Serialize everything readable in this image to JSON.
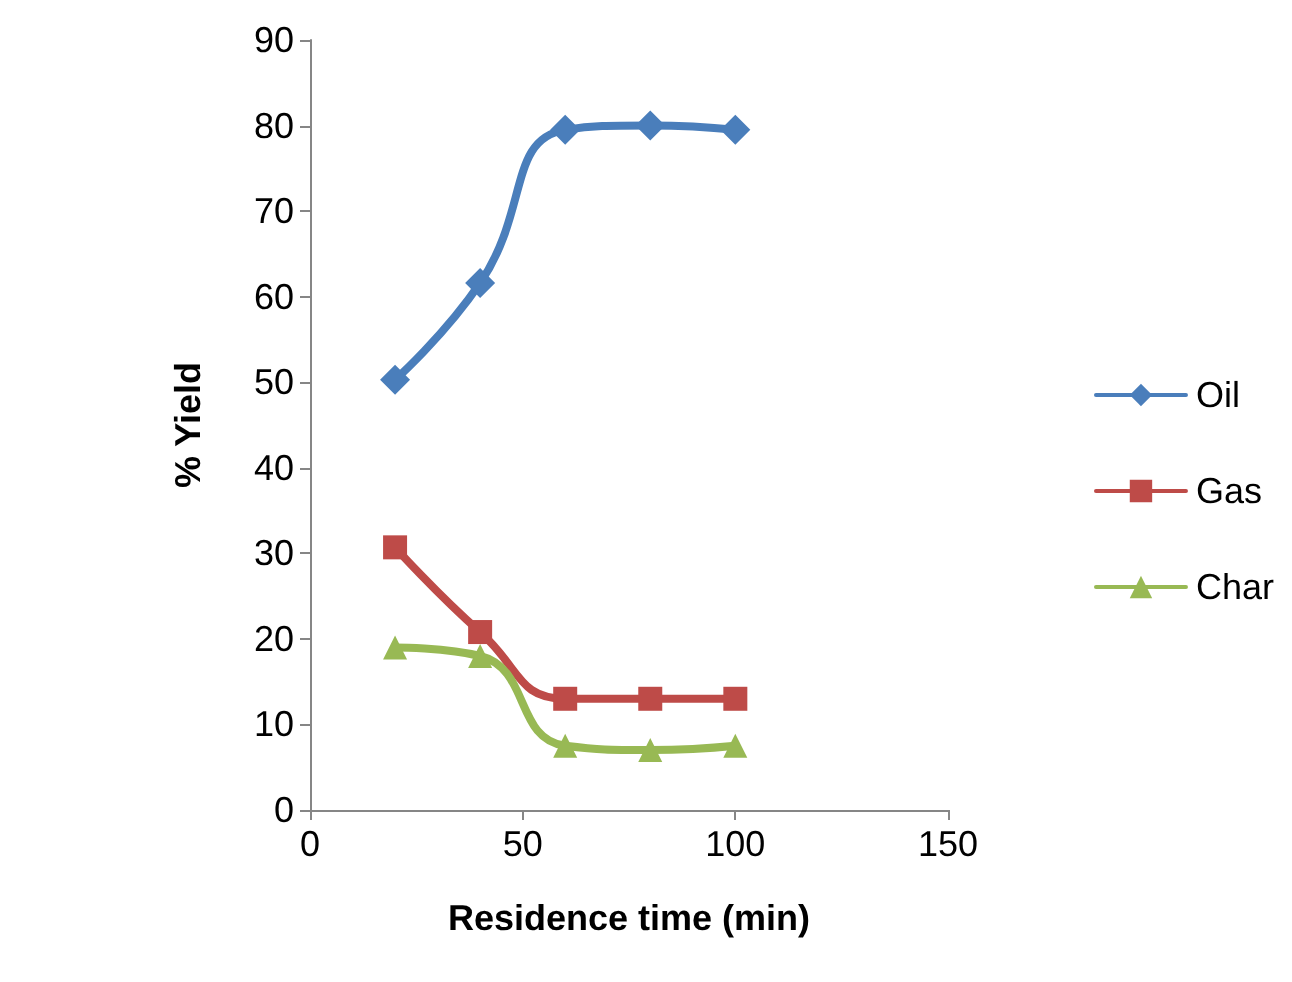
{
  "chart_data": {
    "type": "line",
    "xlabel": "Residence time (min)",
    "ylabel": "% Yield",
    "x": [
      20,
      40,
      60,
      80,
      100
    ],
    "series": [
      {
        "name": "Oil",
        "color": "#4a7ebb",
        "marker": "diamond",
        "values": [
          50.3,
          61.6,
          79.5,
          80,
          79.5
        ]
      },
      {
        "name": "Gas",
        "color": "#be4b48",
        "marker": "square",
        "values": [
          30.7,
          20.8,
          13,
          13,
          13
        ]
      },
      {
        "name": "Char",
        "color": "#98b954",
        "marker": "triangle",
        "values": [
          19,
          18,
          7.5,
          7,
          7.5
        ]
      }
    ],
    "xlim": [
      0,
      150
    ],
    "xticks": [
      0,
      50,
      100,
      150
    ],
    "ylim": [
      0,
      90
    ],
    "yticks": [
      0,
      10,
      20,
      30,
      40,
      50,
      60,
      70,
      80,
      90
    ],
    "grid": false,
    "legend": "right",
    "line_style": "solid"
  }
}
